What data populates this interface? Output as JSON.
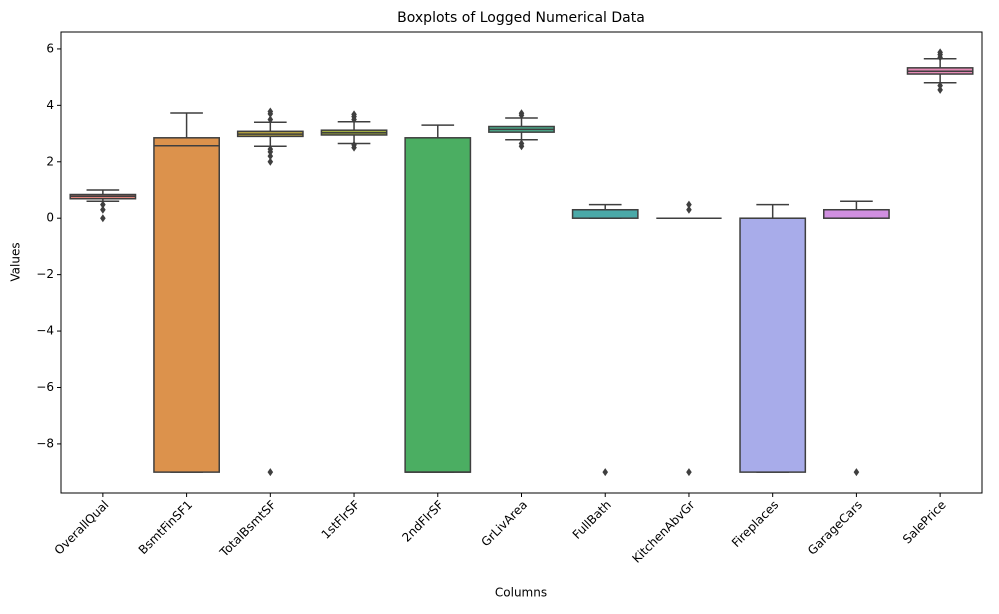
{
  "chart_data": {
    "type": "box",
    "title": "Boxplots of Logged Numerical Data",
    "x_label": "Columns",
    "y_label": "Values",
    "categories": [
      "OverallQual",
      "BsmtFinSF1",
      "TotalBsmtSF",
      "1stFlrSF",
      "2ndFlrSF",
      "GrLivArea",
      "FullBath",
      "KitchenAbvGr",
      "Fireplaces",
      "GarageCars",
      "SalePrice"
    ],
    "colors": [
      "#e5847c",
      "#dc924c",
      "#b8a43f",
      "#a0ae3d",
      "#4bae62",
      "#4caf8e",
      "#4aa9a8",
      "#4ea6c5",
      "#a8acea",
      "#d08fe0",
      "#e68ab6"
    ],
    "boxes": [
      {
        "whislo": 0.6,
        "q1": 0.69,
        "med": 0.78,
        "q3": 0.84,
        "whishi": 1.0,
        "fliers": [
          0,
          0.3,
          0.48
        ]
      },
      {
        "whislo": -9,
        "q1": -9,
        "med": 2.57,
        "q3": 2.85,
        "whishi": 3.73,
        "fliers": []
      },
      {
        "whislo": 2.55,
        "q1": 2.9,
        "med": 2.98,
        "q3": 3.08,
        "whishi": 3.4,
        "fliers": [
          3.5,
          3.7,
          3.78,
          2.0,
          2.2,
          2.35,
          2.45,
          -9
        ]
      },
      {
        "whislo": 2.65,
        "q1": 2.95,
        "med": 3.03,
        "q3": 3.12,
        "whishi": 3.42,
        "fliers": [
          3.5,
          3.6,
          3.68,
          2.5,
          2.6
        ]
      },
      {
        "whislo": -9,
        "q1": -9,
        "med": -9,
        "q3": 2.85,
        "whishi": 3.3,
        "fliers": []
      },
      {
        "whislo": 2.78,
        "q1": 3.05,
        "med": 3.15,
        "q3": 3.25,
        "whishi": 3.55,
        "fliers": [
          3.65,
          3.72,
          2.55,
          2.65
        ]
      },
      {
        "whislo": 0,
        "q1": 0,
        "med": 0.3,
        "q3": 0.3,
        "whishi": 0.48,
        "fliers": [
          -9
        ]
      },
      {
        "whislo": 0,
        "q1": 0,
        "med": 0,
        "q3": 0,
        "whishi": 0,
        "fliers": [
          0.3,
          0.48,
          -9
        ]
      },
      {
        "whislo": -9,
        "q1": -9,
        "med": 0,
        "q3": 0,
        "whishi": 0.48,
        "fliers": []
      },
      {
        "whislo": 0,
        "q1": 0,
        "med": 0.3,
        "q3": 0.3,
        "whishi": 0.6,
        "fliers": [
          -9
        ]
      },
      {
        "whislo": 4.8,
        "q1": 5.11,
        "med": 5.21,
        "q3": 5.33,
        "whishi": 5.65,
        "fliers": [
          5.7,
          5.8,
          5.88,
          4.55,
          4.7
        ]
      }
    ],
    "ylim": [
      -9.74,
      6.6
    ],
    "yticks": [
      {
        "value": -8,
        "label": "−8"
      },
      {
        "value": -6,
        "label": "−6"
      },
      {
        "value": -4,
        "label": "−4"
      },
      {
        "value": -2,
        "label": "−2"
      },
      0,
      2,
      4,
      6
    ]
  }
}
